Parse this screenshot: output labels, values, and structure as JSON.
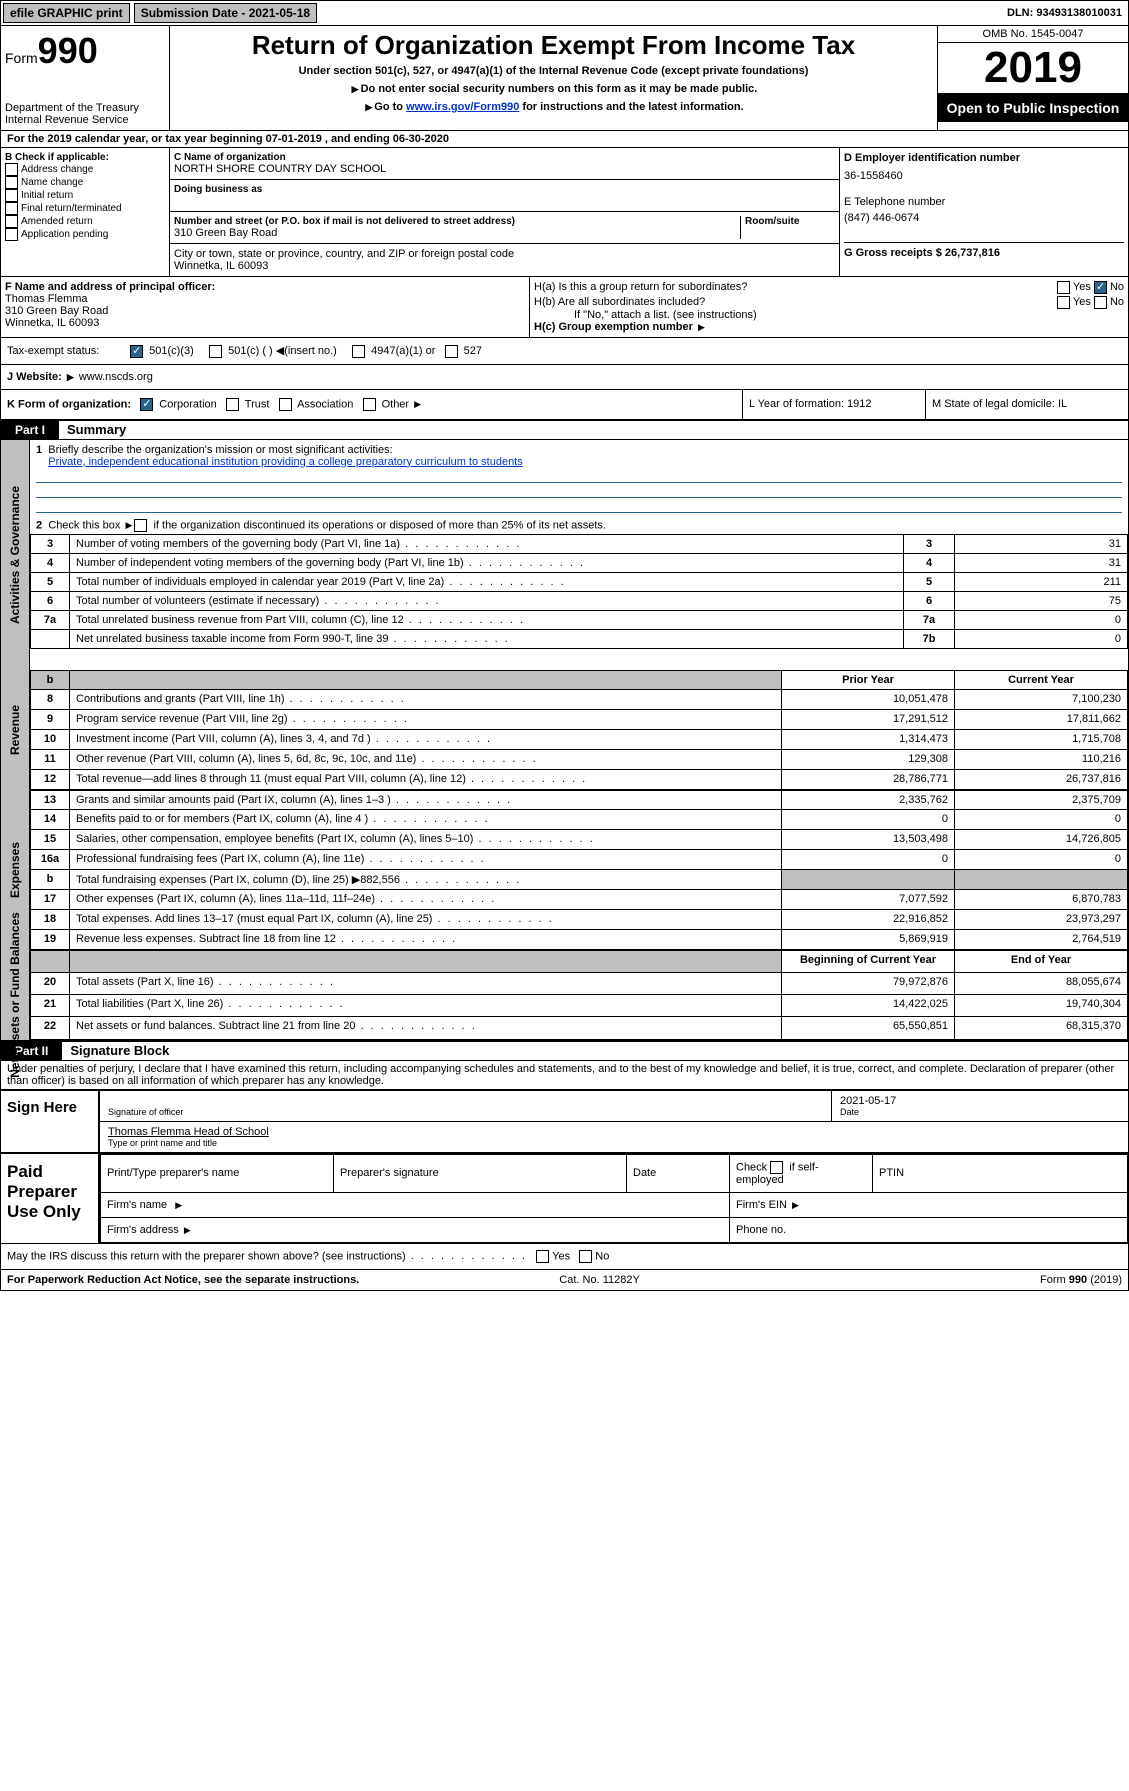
{
  "top": {
    "efile": "efile GRAPHIC print",
    "submission": "Submission Date - 2021-05-18",
    "dln": "DLN: 93493138010031"
  },
  "header": {
    "form": "Form",
    "num": "990",
    "dept": "Department of the Treasury\nInternal Revenue Service",
    "title": "Return of Organization Exempt From Income Tax",
    "sub1": "Under section 501(c), 527, or 4947(a)(1) of the Internal Revenue Code (except private foundations)",
    "sub2": "Do not enter social security numbers on this form as it may be made public.",
    "sub3a": "Go to ",
    "sub3link": "www.irs.gov/Form990",
    "sub3b": " for instructions and the latest information.",
    "omb": "OMB No. 1545-0047",
    "year": "2019",
    "open": "Open to Public Inspection"
  },
  "A": "For the 2019 calendar year, or tax year beginning 07-01-2019    , and ending 06-30-2020",
  "B": {
    "label": "B Check if applicable:",
    "opts": [
      "Address change",
      "Name change",
      "Initial return",
      "Final return/terminated",
      "Amended return",
      "Application pending"
    ]
  },
  "C": {
    "namelab": "C Name of organization",
    "name": "NORTH SHORE COUNTRY DAY SCHOOL",
    "dba": "Doing business as",
    "streetlab": "Number and street (or P.O. box if mail is not delivered to street address)",
    "room": "Room/suite",
    "street": "310 Green Bay Road",
    "citylab": "City or town, state or province, country, and ZIP or foreign postal code",
    "city": "Winnetka, IL  60093"
  },
  "D": {
    "lab": "D Employer identification number",
    "val": "36-1558460"
  },
  "E": {
    "lab": "E Telephone number",
    "val": "(847) 446-0674"
  },
  "G": {
    "lab": "G Gross receipts $ 26,737,816"
  },
  "F": {
    "lab": "F  Name and address of principal officer:",
    "name": "Thomas Flemma",
    "addr1": "310 Green Bay Road",
    "addr2": "Winnetka, IL  60093"
  },
  "H": {
    "a": "H(a)  Is this a group return for subordinates?",
    "b": "H(b)  Are all subordinates included?",
    "note": "If \"No,\" attach a list. (see instructions)",
    "c": "H(c)  Group exemption number",
    "yes": "Yes",
    "no": "No"
  },
  "I": {
    "lab": "Tax-exempt status:",
    "a": "501(c)(3)",
    "b": "501(c) (   )",
    "ins": "(insert no.)",
    "c": "4947(a)(1) or",
    "d": "527"
  },
  "J": {
    "lab": "J    Website:",
    "val": "www.nscds.org"
  },
  "K": {
    "lab": "K Form of organization:",
    "a": "Corporation",
    "b": "Trust",
    "c": "Association",
    "d": "Other"
  },
  "L": {
    "lab": "L Year of formation: 1912"
  },
  "M": {
    "lab": "M State of legal domicile: IL"
  },
  "part1": {
    "bar": "Part I",
    "title": "Summary"
  },
  "summary": {
    "q1a": "Briefly describe the organization's mission or most significant activities:",
    "q1b": "Private, independent educational institution providing a college preparatory curriculum to students",
    "q2": "Check this box",
    "q2b": "if the organization discontinued its operations or disposed of more than 25% of its net assets.",
    "rows_top": [
      {
        "n": "3",
        "d": "Number of voting members of the governing body (Part VI, line 1a)",
        "r": "3",
        "v": "31"
      },
      {
        "n": "4",
        "d": "Number of independent voting members of the governing body (Part VI, line 1b)",
        "r": "4",
        "v": "31"
      },
      {
        "n": "5",
        "d": "Total number of individuals employed in calendar year 2019 (Part V, line 2a)",
        "r": "5",
        "v": "211"
      },
      {
        "n": "6",
        "d": "Total number of volunteers (estimate if necessary)",
        "r": "6",
        "v": "75"
      },
      {
        "n": "7a",
        "d": "Total unrelated business revenue from Part VIII, column (C), line 12",
        "r": "7a",
        "v": "0"
      },
      {
        "n": "",
        "d": "Net unrelated business taxable income from Form 990-T, line 39",
        "r": "7b",
        "v": "0"
      }
    ],
    "hdr_prior": "Prior Year",
    "hdr_curr": "Current Year",
    "rev": [
      {
        "n": "8",
        "d": "Contributions and grants (Part VIII, line 1h)",
        "p": "10,051,478",
        "c": "7,100,230"
      },
      {
        "n": "9",
        "d": "Program service revenue (Part VIII, line 2g)",
        "p": "17,291,512",
        "c": "17,811,662"
      },
      {
        "n": "10",
        "d": "Investment income (Part VIII, column (A), lines 3, 4, and 7d )",
        "p": "1,314,473",
        "c": "1,715,708"
      },
      {
        "n": "11",
        "d": "Other revenue (Part VIII, column (A), lines 5, 6d, 8c, 9c, 10c, and 11e)",
        "p": "129,308",
        "c": "110,216"
      },
      {
        "n": "12",
        "d": "Total revenue—add lines 8 through 11 (must equal Part VIII, column (A), line 12)",
        "p": "28,786,771",
        "c": "26,737,816"
      }
    ],
    "exp": [
      {
        "n": "13",
        "d": "Grants and similar amounts paid (Part IX, column (A), lines 1–3 )",
        "p": "2,335,762",
        "c": "2,375,709"
      },
      {
        "n": "14",
        "d": "Benefits paid to or for members (Part IX, column (A), line 4 )",
        "p": "0",
        "c": "0"
      },
      {
        "n": "15",
        "d": "Salaries, other compensation, employee benefits (Part IX, column (A), lines 5–10)",
        "p": "13,503,498",
        "c": "14,726,805"
      },
      {
        "n": "16a",
        "d": "Professional fundraising fees (Part IX, column (A), line 11e)",
        "p": "0",
        "c": "0"
      },
      {
        "n": "b",
        "d": "Total fundraising expenses (Part IX, column (D), line 25) ▶882,556",
        "p": "",
        "c": "",
        "gray": true
      },
      {
        "n": "17",
        "d": "Other expenses (Part IX, column (A), lines 11a–11d, 11f–24e)",
        "p": "7,077,592",
        "c": "6,870,783"
      },
      {
        "n": "18",
        "d": "Total expenses. Add lines 13–17 (must equal Part IX, column (A), line 25)",
        "p": "22,916,852",
        "c": "23,973,297"
      },
      {
        "n": "19",
        "d": "Revenue less expenses. Subtract line 18 from line 12",
        "p": "5,869,919",
        "c": "2,764,519"
      }
    ],
    "hdr_beg": "Beginning of Current Year",
    "hdr_end": "End of Year",
    "net": [
      {
        "n": "20",
        "d": "Total assets (Part X, line 16)",
        "p": "79,972,876",
        "c": "88,055,674"
      },
      {
        "n": "21",
        "d": "Total liabilities (Part X, line 26)",
        "p": "14,422,025",
        "c": "19,740,304"
      },
      {
        "n": "22",
        "d": "Net assets or fund balances. Subtract line 21 from line 20",
        "p": "65,550,851",
        "c": "68,315,370"
      }
    ],
    "vlab_gov": "Activities & Governance",
    "vlab_rev": "Revenue",
    "vlab_exp": "Expenses",
    "vlab_net": "Net Assets or Fund Balances"
  },
  "part2": {
    "bar": "Part II",
    "title": "Signature Block",
    "decl": "Under penalties of perjury, I declare that I have examined this return, including accompanying schedules and statements, and to the best of my knowledge and belief, it is true, correct, and complete. Declaration of preparer (other than officer) is based on all information of which preparer has any knowledge."
  },
  "sign": {
    "here": "Sign Here",
    "date": "2021-05-17",
    "datelab": "Date",
    "siglab": "Signature of officer",
    "name": "Thomas Flemma  Head of School",
    "typelab": "Type or print name and title"
  },
  "paid": {
    "lab": "Paid Preparer Use Only",
    "c1": "Print/Type preparer's name",
    "c2": "Preparer's signature",
    "c3": "Date",
    "c4a": "Check",
    "c4b": "if self-employed",
    "c5": "PTIN",
    "firm": "Firm's name",
    "ein": "Firm's EIN",
    "addr": "Firm's address",
    "phone": "Phone no."
  },
  "bottom": {
    "q": "May the IRS discuss this return with the preparer shown above? (see instructions)",
    "yes": "Yes",
    "no": "No",
    "pra": "For Paperwork Reduction Act Notice, see the separate instructions.",
    "cat": "Cat. No. 11282Y",
    "form": "Form 990 (2019)"
  }
}
